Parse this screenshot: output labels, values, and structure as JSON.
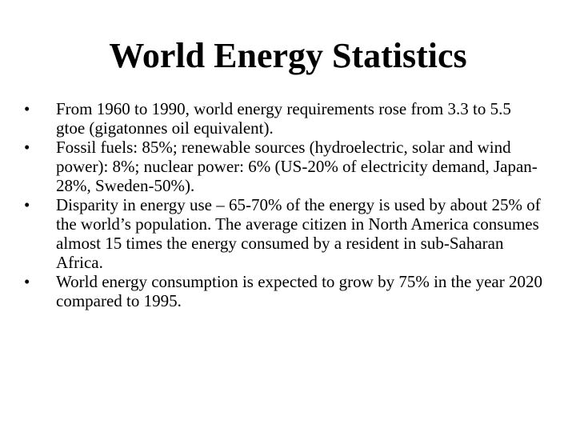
{
  "slide": {
    "title": "World Energy Statistics",
    "bullet_glyph": "•",
    "bullets": [
      "From 1960 to 1990, world energy requirements rose from 3.3 to 5.5 gtoe (gigatonnes oil equivalent).",
      "Fossil fuels: 85%; renewable sources (hydroelectric, solar and wind power): 8%; nuclear power: 6% (US-20% of electricity demand, Japan-28%, Sweden-50%).",
      "Disparity in energy use – 65-70% of the energy is used by about 25% of the world’s population.  The average citizen in North America consumes almost 15 times the energy consumed by a resident in sub-Saharan Africa.",
      "World energy consumption is expected to grow by 75% in the year 2020 compared to 1995."
    ]
  }
}
